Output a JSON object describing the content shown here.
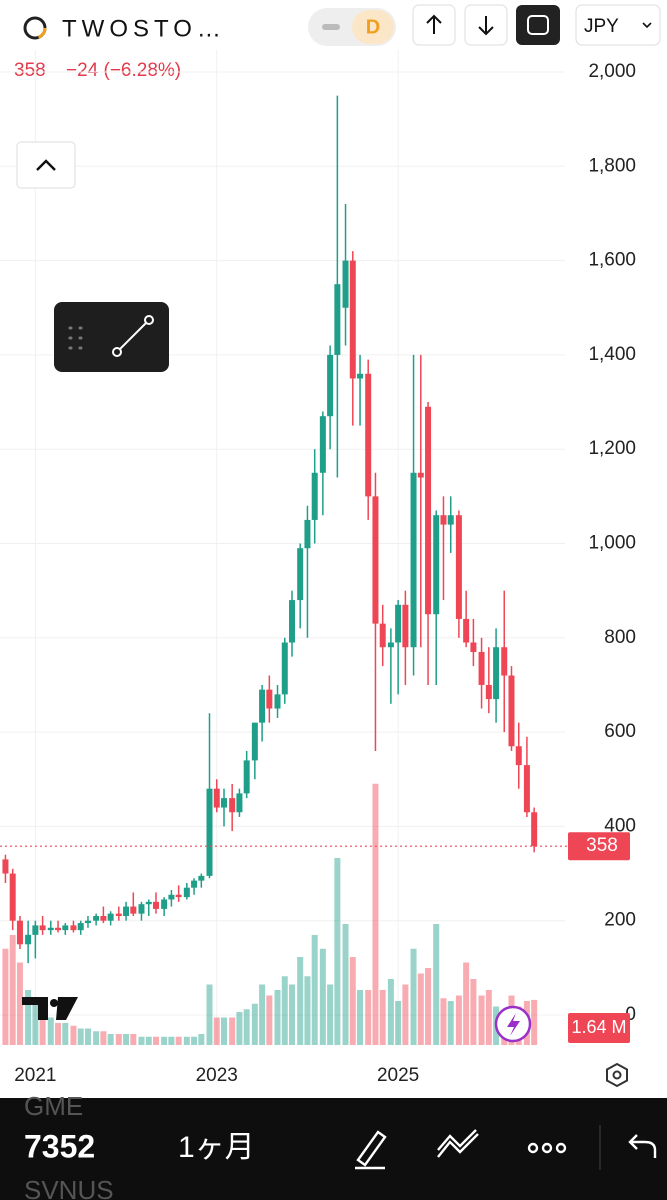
{
  "header": {
    "symbol": "TWOSTO…",
    "interval_toggle": "D",
    "currency": "JPY",
    "price": "358",
    "change": "−24 (−6.28%)"
  },
  "chart_data": {
    "type": "candlestick",
    "x": [
      2020.67,
      2020.75,
      2020.83,
      2020.92,
      2021,
      2021.08,
      2021.17,
      2021.25,
      2021.33,
      2021.42,
      2021.5,
      2021.58,
      2021.67,
      2021.75,
      2021.83,
      2021.92,
      2022,
      2022.08,
      2022.17,
      2022.25,
      2022.33,
      2022.42,
      2022.5,
      2022.58,
      2022.67,
      2022.75,
      2022.83,
      2022.92,
      2023,
      2023.08,
      2023.17,
      2023.25,
      2023.33,
      2023.42,
      2023.5,
      2023.58,
      2023.67,
      2023.75,
      2023.83,
      2023.92,
      2024,
      2024.08,
      2024.17,
      2024.25,
      2024.33,
      2024.42,
      2024.5,
      2024.58,
      2024.67,
      2024.75,
      2024.83,
      2024.92,
      2025,
      2025.08,
      2025.17,
      2025.25,
      2025.33,
      2025.42,
      2025.5,
      2025.58,
      2025.67,
      2025.75,
      2025.83,
      2025.92,
      2026,
      2026.08,
      2026.17,
      2026.25,
      2026.33,
      2026.42,
      2026.5
    ],
    "open": [
      330,
      300,
      200,
      150,
      170,
      190,
      180,
      185,
      180,
      190,
      180,
      195,
      200,
      210,
      200,
      215,
      210,
      230,
      215,
      235,
      240,
      225,
      245,
      255,
      250,
      270,
      285,
      295,
      480,
      440,
      460,
      430,
      470,
      540,
      620,
      690,
      650,
      680,
      790,
      880,
      990,
      1050,
      1150,
      1270,
      1400,
      1500,
      1600,
      1350,
      1360,
      1100,
      830,
      780,
      790,
      870,
      780,
      1150,
      1290,
      850,
      1060,
      1040,
      1060,
      840,
      790,
      770,
      700,
      670,
      780,
      720,
      570,
      530,
      430
    ],
    "high": [
      340,
      310,
      210,
      200,
      200,
      210,
      200,
      200,
      195,
      200,
      200,
      210,
      215,
      230,
      220,
      230,
      240,
      260,
      240,
      245,
      260,
      250,
      265,
      275,
      280,
      290,
      300,
      640,
      500,
      480,
      490,
      480,
      560,
      620,
      700,
      720,
      700,
      800,
      900,
      1000,
      1080,
      1200,
      1280,
      1420,
      1950,
      1720,
      1620,
      1400,
      1390,
      1150,
      870,
      820,
      880,
      900,
      1400,
      1400,
      1300,
      1070,
      1100,
      1100,
      1070,
      900,
      840,
      800,
      780,
      820,
      900,
      740,
      620,
      590,
      440
    ],
    "low": [
      280,
      180,
      140,
      110,
      120,
      170,
      170,
      175,
      170,
      175,
      170,
      185,
      190,
      195,
      190,
      200,
      200,
      210,
      200,
      210,
      215,
      210,
      230,
      240,
      245,
      255,
      270,
      290,
      430,
      400,
      390,
      420,
      460,
      500,
      580,
      620,
      630,
      660,
      760,
      820,
      800,
      1000,
      1060,
      1200,
      1140,
      1420,
      1250,
      1250,
      1050,
      560,
      740,
      660,
      680,
      700,
      720,
      780,
      700,
      700,
      880,
      980,
      800,
      780,
      740,
      650,
      640,
      620,
      600,
      560,
      480,
      420,
      345
    ],
    "close": [
      300,
      200,
      150,
      170,
      190,
      180,
      185,
      180,
      190,
      180,
      195,
      200,
      210,
      200,
      215,
      210,
      230,
      215,
      235,
      240,
      225,
      245,
      255,
      250,
      270,
      285,
      295,
      480,
      440,
      460,
      430,
      470,
      540,
      620,
      690,
      650,
      680,
      790,
      880,
      990,
      1050,
      1150,
      1270,
      1400,
      1550,
      1600,
      1350,
      1360,
      1100,
      830,
      780,
      790,
      870,
      780,
      1150,
      1140,
      850,
      1060,
      1040,
      1060,
      840,
      790,
      770,
      700,
      670,
      780,
      720,
      570,
      530,
      430,
      358
    ],
    "volume": [
      3.5,
      4,
      3,
      2,
      1.5,
      1,
      1,
      0.8,
      0.8,
      0.7,
      0.6,
      0.6,
      0.5,
      0.5,
      0.4,
      0.4,
      0.4,
      0.4,
      0.3,
      0.3,
      0.3,
      0.3,
      0.3,
      0.3,
      0.3,
      0.3,
      0.4,
      2.2,
      1,
      1,
      1,
      1.2,
      1.3,
      1.5,
      2.2,
      1.8,
      2,
      2.5,
      2.2,
      3.2,
      2.5,
      4,
      3.5,
      2.2,
      6.8,
      4.4,
      3.2,
      2,
      2,
      9.5,
      2,
      2.4,
      1.6,
      2.2,
      3.5,
      2.6,
      2.8,
      4.4,
      1.7,
      1.6,
      1.8,
      3,
      2.4,
      1.8,
      2,
      1.4,
      1.2,
      1.8,
      1.4,
      1.6,
      1.64
    ],
    "up_color": "#1f9e89",
    "down_color": "#ef4655",
    "xlim": [
      2020.61,
      2026.84
    ],
    "xticks": [
      2021,
      2023,
      2025
    ],
    "ylim": [
      0,
      2000
    ],
    "yticks": [
      0,
      200,
      400,
      600,
      800,
      {
        "value": 1000,
        "label": "1,000"
      },
      {
        "value": 1200,
        "label": "1,200"
      },
      {
        "value": 1400,
        "label": "1,400"
      },
      {
        "value": 1600,
        "label": "1,600"
      },
      {
        "value": 1800,
        "label": "1,800"
      },
      {
        "value": 2000,
        "label": "2,000"
      }
    ],
    "vlim": [
      0,
      10
    ],
    "last_price": 358,
    "last_volume_label": "1.64 M",
    "grid": true
  },
  "footer": {
    "symbol_above": "GME",
    "symbol": "7352",
    "symbol_below": "SVNUS",
    "interval": "1ヶ月"
  }
}
